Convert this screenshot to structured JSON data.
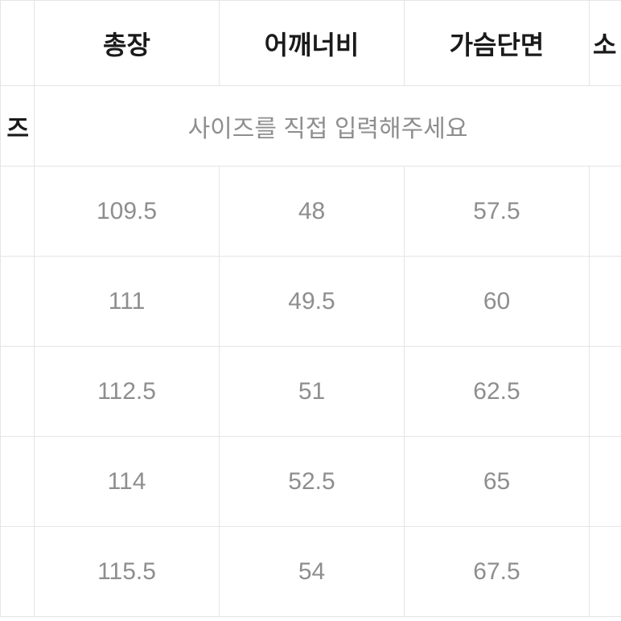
{
  "table": {
    "headers": {
      "col1": "총장",
      "col2": "어깨너비",
      "col3": "가슴단면",
      "col4_partial": "소"
    },
    "rowLabel": "즈",
    "inputPrompt": "사이즈를 직접 입력해주세요",
    "rows": [
      {
        "col1": "109.5",
        "col2": "48",
        "col3": "57.5"
      },
      {
        "col1": "111",
        "col2": "49.5",
        "col3": "60"
      },
      {
        "col1": "112.5",
        "col2": "51",
        "col3": "62.5"
      },
      {
        "col1": "114",
        "col2": "52.5",
        "col3": "65"
      },
      {
        "col1": "115.5",
        "col2": "54",
        "col3": "67.5"
      }
    ],
    "colors": {
      "border": "#e5e5e5",
      "headerText": "#1a1a1a",
      "dataText": "#8e8e8e",
      "background": "#ffffff"
    },
    "fontSizes": {
      "header": 32,
      "data": 30,
      "prompt": 30
    }
  }
}
